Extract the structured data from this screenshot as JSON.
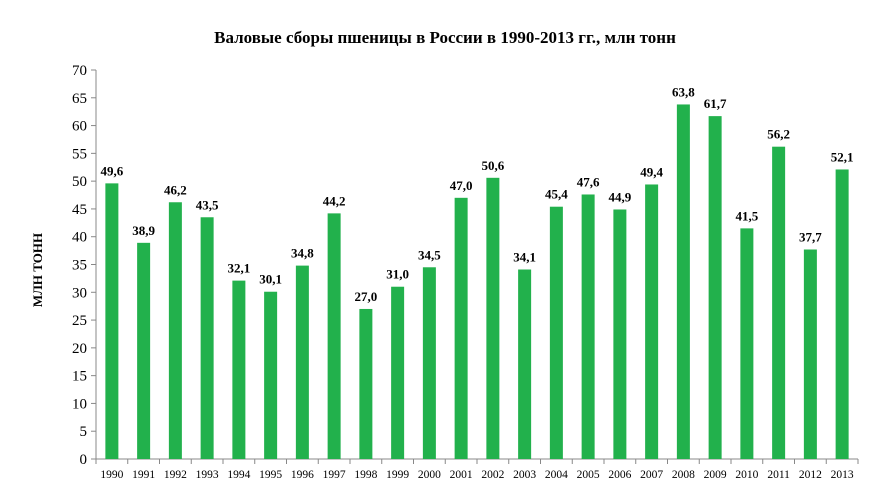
{
  "chart_data": {
    "type": "bar",
    "title": "Валовые сборы пшеницы в России в 1990-2013 гг., млн тонн",
    "xlabel": "",
    "ylabel": "МЛН ТОНН",
    "ylim": [
      0,
      70
    ],
    "ytick_step": 5,
    "grid": false,
    "legend": "none",
    "bar_color": "#22B14C",
    "categories": [
      "1990",
      "1991",
      "1992",
      "1993",
      "1994",
      "1995",
      "1996",
      "1997",
      "1998",
      "1999",
      "2000",
      "2001",
      "2002",
      "2003",
      "2004",
      "2005",
      "2006",
      "2007",
      "2008",
      "2009",
      "2010",
      "2011",
      "2012",
      "2013"
    ],
    "values": [
      49.6,
      38.9,
      46.2,
      43.5,
      32.1,
      30.1,
      34.8,
      44.2,
      27.0,
      31.0,
      34.5,
      47.0,
      50.6,
      34.1,
      45.4,
      47.6,
      44.9,
      49.4,
      63.8,
      61.7,
      41.5,
      56.2,
      37.7,
      52.1
    ],
    "data_labels": [
      "49,6",
      "38,9",
      "46,2",
      "43,5",
      "32,1",
      "30,1",
      "34,8",
      "44,2",
      "27,0",
      "31,0",
      "34,5",
      "47,0",
      "50,6",
      "34,1",
      "45,4",
      "47,6",
      "44,9",
      "49,4",
      "63,8",
      "61,7",
      "41,5",
      "56,2",
      "37,7",
      "52,1"
    ]
  }
}
